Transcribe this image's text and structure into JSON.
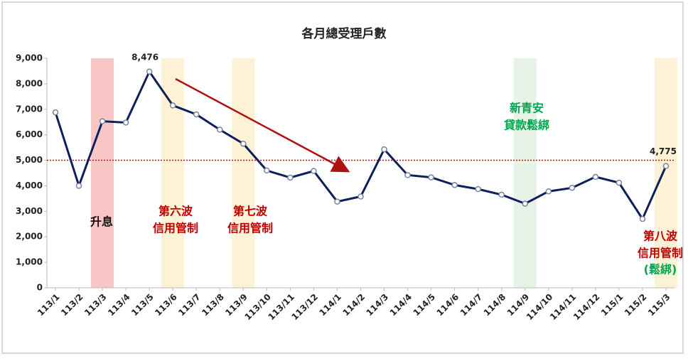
{
  "chart_data": {
    "type": "line",
    "title": "各月總受理戶數",
    "categories": [
      "113/1",
      "113/2",
      "113/3",
      "113/4",
      "113/5",
      "113/6",
      "113/7",
      "113/8",
      "113/9",
      "113/10",
      "113/11",
      "113/12",
      "114/1",
      "114/2",
      "114/3",
      "114/4",
      "114/5",
      "114/6",
      "114/7",
      "114/8",
      "114/9",
      "114/10",
      "114/11",
      "114/12",
      "115/1",
      "115/2",
      "115/3"
    ],
    "values": [
      6880,
      4000,
      6530,
      6480,
      8476,
      7150,
      6800,
      6200,
      5650,
      4600,
      4320,
      4580,
      3380,
      3580,
      5430,
      4420,
      4330,
      4030,
      3870,
      3650,
      3300,
      3780,
      3920,
      4350,
      4120,
      2700,
      4775
    ],
    "value_labels": [
      null,
      null,
      null,
      null,
      "8,476",
      null,
      null,
      null,
      null,
      null,
      null,
      null,
      null,
      null,
      null,
      null,
      null,
      null,
      null,
      null,
      null,
      null,
      null,
      null,
      null,
      null,
      "4,775"
    ],
    "color": "#0d1f5c",
    "ylim": [
      0,
      9000
    ],
    "yticks": [
      0,
      {
        "value": 1000,
        "label": "1,000"
      },
      {
        "value": 2000,
        "label": "2,000"
      },
      {
        "value": 3000,
        "label": "3,000"
      },
      {
        "value": 4000,
        "label": "4,000"
      },
      {
        "value": 5000,
        "label": "5,000"
      },
      {
        "value": 6000,
        "label": "6,000"
      },
      {
        "value": 7000,
        "label": "7,000"
      },
      {
        "value": 8000,
        "label": "8,000"
      },
      {
        "value": 9000,
        "label": "9,000"
      }
    ],
    "reference_line": {
      "value": 5000,
      "color": "#e00000"
    },
    "highlights": [
      {
        "category": "113/3",
        "color": "#f9c6c6"
      },
      {
        "category": "113/6",
        "color": "#fdf1d6"
      },
      {
        "category": "113/9",
        "color": "#fdf1d6"
      },
      {
        "category": "114/9",
        "color": "#e6f3e6"
      },
      {
        "category": "115/3",
        "color": "#fdf1d6"
      }
    ],
    "annotations": [
      {
        "lines": [
          "升息"
        ],
        "color": "#111111"
      },
      {
        "lines": [
          "第六波",
          "信用管制"
        ],
        "color": "#c00000"
      },
      {
        "lines": [
          "第七波",
          "信用管制"
        ],
        "color": "#c00000"
      },
      {
        "lines": [
          "新青安",
          "貸款鬆綁"
        ],
        "color": "#00a651"
      },
      {
        "lines": [
          "第八波",
          "信用管制"
        ],
        "color": "#c00000"
      },
      {
        "lines": [
          "(鬆綁)"
        ],
        "color": "#00a651"
      }
    ]
  }
}
